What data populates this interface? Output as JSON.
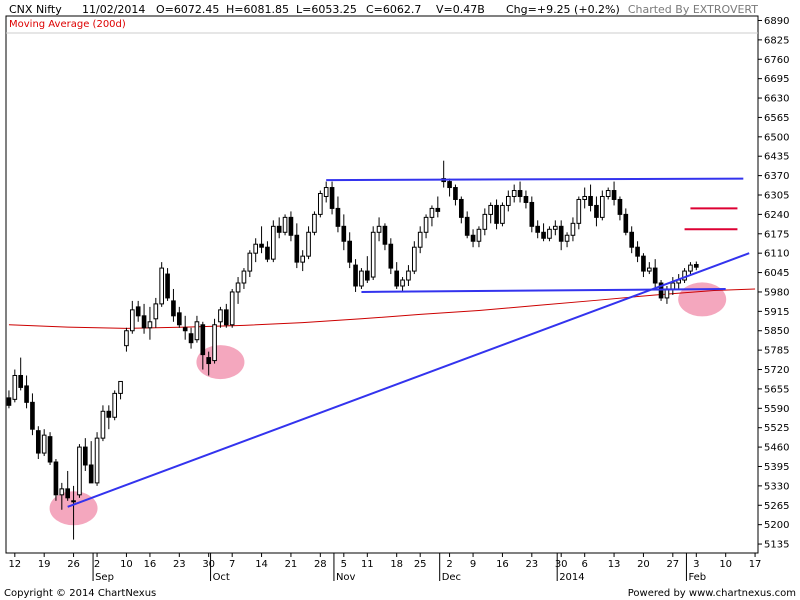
{
  "header": {
    "symbol": "CNX Nifty",
    "date": "11/02/2014",
    "open": "O=6072.45",
    "high": "H=6081.85",
    "low": "L=6053.25",
    "close": "C=6062.7",
    "volume": "V=0.47B",
    "change": "Chg=+9.25 (+0.2%)",
    "charted_by": "Charted By EXTROVERT"
  },
  "legend": {
    "moving_average": "Moving Average (200d)"
  },
  "footer": {
    "copyright": "Copyright © 2014 ChartNexus",
    "powered_by": "Powered by www.chartnexus.com"
  },
  "colors": {
    "candle": "#000000",
    "moving_average": "#cc0000",
    "trendline": "#3333ee",
    "resistance_mark": "#dd0033",
    "highlight": "#f08aa8"
  },
  "chart_data": {
    "type": "candlestick",
    "title": "",
    "xlabel": "",
    "ylabel": "",
    "ylim": [
      5105,
      6905
    ],
    "y_ticks": [
      5135,
      5200,
      5265,
      5330,
      5395,
      5460,
      5525,
      5590,
      5655,
      5720,
      5785,
      5850,
      5915,
      5980,
      6045,
      6110,
      6175,
      6240,
      6305,
      6370,
      6435,
      6500,
      6565,
      6630,
      6695,
      6760,
      6825,
      6890
    ],
    "x_ticks": [
      {
        "label": "12",
        "i": 1
      },
      {
        "label": "19",
        "i": 6
      },
      {
        "label": "26",
        "i": 11
      },
      {
        "label": "2",
        "i": 15
      },
      {
        "label": "10",
        "i": 20
      },
      {
        "label": "16",
        "i": 24
      },
      {
        "label": "23",
        "i": 29
      },
      {
        "label": "30",
        "i": 34
      },
      {
        "label": "7",
        "i": 38
      },
      {
        "label": "14",
        "i": 43
      },
      {
        "label": "21",
        "i": 48
      },
      {
        "label": "28",
        "i": 53
      },
      {
        "label": "5",
        "i": 57
      },
      {
        "label": "11",
        "i": 61
      },
      {
        "label": "18",
        "i": 66
      },
      {
        "label": "25",
        "i": 70
      },
      {
        "label": "2",
        "i": 75
      },
      {
        "label": "9",
        "i": 79
      },
      {
        "label": "16",
        "i": 84
      },
      {
        "label": "23",
        "i": 89
      },
      {
        "label": "30",
        "i": 94
      },
      {
        "label": "6",
        "i": 98
      },
      {
        "label": "13",
        "i": 103
      },
      {
        "label": "20",
        "i": 108
      },
      {
        "label": "27",
        "i": 113
      },
      {
        "label": "3",
        "i": 117
      },
      {
        "label": "10",
        "i": 122
      },
      {
        "label": "17",
        "i": 127
      }
    ],
    "month_labels": [
      {
        "label": "Sep",
        "i": 15
      },
      {
        "label": "Oct",
        "i": 35
      },
      {
        "label": "Nov",
        "i": 56
      },
      {
        "label": "Dec",
        "i": 74
      },
      {
        "label": "2014",
        "i": 94
      },
      {
        "label": "Feb",
        "i": 116
      }
    ],
    "candles": [
      [
        5625,
        5650,
        5590,
        5600
      ],
      [
        5620,
        5720,
        5610,
        5700
      ],
      [
        5700,
        5760,
        5650,
        5660
      ],
      [
        5665,
        5700,
        5590,
        5610
      ],
      [
        5610,
        5640,
        5500,
        5520
      ],
      [
        5515,
        5530,
        5420,
        5440
      ],
      [
        5440,
        5520,
        5430,
        5500
      ],
      [
        5495,
        5510,
        5400,
        5410
      ],
      [
        5410,
        5420,
        5280,
        5300
      ],
      [
        5300,
        5340,
        5250,
        5320
      ],
      [
        5320,
        5380,
        5280,
        5290
      ],
      [
        5280,
        5330,
        5150,
        5280
      ],
      [
        5300,
        5470,
        5290,
        5460
      ],
      [
        5460,
        5490,
        5380,
        5400
      ],
      [
        5400,
        5480,
        5340,
        5340
      ],
      [
        5340,
        5510,
        5330,
        5490
      ],
      [
        5490,
        5600,
        5480,
        5580
      ],
      [
        5580,
        5600,
        5520,
        5560
      ],
      [
        5560,
        5650,
        5550,
        5640
      ],
      [
        5640,
        5680,
        5620,
        5680
      ],
      [
        5800,
        5860,
        5780,
        5850
      ],
      [
        5850,
        5950,
        5840,
        5920
      ],
      [
        5930,
        5950,
        5880,
        5900
      ],
      [
        5900,
        5940,
        5840,
        5860
      ],
      [
        5860,
        5930,
        5820,
        5880
      ],
      [
        5890,
        5960,
        5860,
        5940
      ],
      [
        5940,
        6080,
        5930,
        6060
      ],
      [
        6040,
        6060,
        5950,
        5960
      ],
      [
        5950,
        5990,
        5880,
        5900
      ],
      [
        5910,
        5930,
        5860,
        5870
      ],
      [
        5860,
        5900,
        5820,
        5850
      ],
      [
        5840,
        5860,
        5790,
        5810
      ],
      [
        5820,
        5900,
        5810,
        5880
      ],
      [
        5870,
        5880,
        5720,
        5770
      ],
      [
        5760,
        5780,
        5700,
        5740
      ],
      [
        5750,
        5890,
        5740,
        5870
      ],
      [
        5880,
        5930,
        5860,
        5920
      ],
      [
        5920,
        5940,
        5860,
        5870
      ],
      [
        5870,
        5990,
        5860,
        5980
      ],
      [
        5980,
        6030,
        5940,
        6010
      ],
      [
        6010,
        6060,
        5990,
        6050
      ],
      [
        6050,
        6120,
        6030,
        6110
      ],
      [
        6110,
        6160,
        6080,
        6140
      ],
      [
        6140,
        6200,
        6110,
        6130
      ],
      [
        6130,
        6150,
        6080,
        6090
      ],
      [
        6090,
        6220,
        6080,
        6200
      ],
      [
        6200,
        6230,
        6160,
        6180
      ],
      [
        6180,
        6240,
        6170,
        6230
      ],
      [
        6230,
        6250,
        6150,
        6170
      ],
      [
        6170,
        6210,
        6060,
        6080
      ],
      [
        6080,
        6120,
        6050,
        6100
      ],
      [
        6100,
        6200,
        6090,
        6180
      ],
      [
        6180,
        6250,
        6170,
        6240
      ],
      [
        6240,
        6320,
        6230,
        6310
      ],
      [
        6300,
        6350,
        6280,
        6330
      ],
      [
        6330,
        6350,
        6240,
        6260
      ],
      [
        6260,
        6300,
        6180,
        6200
      ],
      [
        6200,
        6240,
        6120,
        6150
      ],
      [
        6150,
        6180,
        6060,
        6080
      ],
      [
        6070,
        6090,
        5980,
        6000
      ],
      [
        6000,
        6060,
        5990,
        6050
      ],
      [
        6050,
        6100,
        6010,
        6020
      ],
      [
        6030,
        6200,
        6020,
        6180
      ],
      [
        6180,
        6230,
        6150,
        6200
      ],
      [
        6200,
        6210,
        6120,
        6140
      ],
      [
        6140,
        6160,
        6040,
        6060
      ],
      [
        6050,
        6080,
        5990,
        6000
      ],
      [
        6000,
        6030,
        5980,
        6020
      ],
      [
        6020,
        6070,
        6000,
        6050
      ],
      [
        6050,
        6150,
        6040,
        6130
      ],
      [
        6130,
        6200,
        6110,
        6180
      ],
      [
        6180,
        6240,
        6160,
        6230
      ],
      [
        6230,
        6270,
        6200,
        6260
      ],
      [
        6260,
        6300,
        6230,
        6250
      ],
      [
        6360,
        6420,
        6330,
        6350
      ],
      [
        6350,
        6360,
        6300,
        6330
      ],
      [
        6330,
        6340,
        6270,
        6290
      ],
      [
        6290,
        6300,
        6210,
        6230
      ],
      [
        6230,
        6250,
        6160,
        6170
      ],
      [
        6170,
        6190,
        6130,
        6150
      ],
      [
        6150,
        6200,
        6130,
        6190
      ],
      [
        6190,
        6260,
        6170,
        6240
      ],
      [
        6240,
        6280,
        6210,
        6270
      ],
      [
        6270,
        6290,
        6190,
        6210
      ],
      [
        6210,
        6280,
        6200,
        6270
      ],
      [
        6270,
        6320,
        6250,
        6300
      ],
      [
        6300,
        6340,
        6280,
        6320
      ],
      [
        6320,
        6350,
        6280,
        6300
      ],
      [
        6300,
        6320,
        6260,
        6280
      ],
      [
        6280,
        6300,
        6180,
        6200
      ],
      [
        6200,
        6220,
        6160,
        6180
      ],
      [
        6180,
        6210,
        6150,
        6160
      ],
      [
        6160,
        6200,
        6150,
        6190
      ],
      [
        6190,
        6220,
        6170,
        6200
      ],
      [
        6200,
        6220,
        6120,
        6150
      ],
      [
        6150,
        6180,
        6130,
        6170
      ],
      [
        6170,
        6230,
        6150,
        6210
      ],
      [
        6210,
        6300,
        6190,
        6290
      ],
      [
        6290,
        6330,
        6260,
        6300
      ],
      [
        6300,
        6340,
        6250,
        6270
      ],
      [
        6270,
        6300,
        6200,
        6230
      ],
      [
        6230,
        6320,
        6220,
        6300
      ],
      [
        6300,
        6330,
        6290,
        6320
      ],
      [
        6320,
        6350,
        6270,
        6290
      ],
      [
        6290,
        6300,
        6220,
        6240
      ],
      [
        6240,
        6260,
        6170,
        6180
      ],
      [
        6180,
        6200,
        6110,
        6130
      ],
      [
        6130,
        6150,
        6080,
        6100
      ],
      [
        6100,
        6110,
        6030,
        6050
      ],
      [
        6050,
        6080,
        6040,
        6060
      ],
      [
        6060,
        6090,
        5990,
        6010
      ],
      [
        6010,
        6020,
        5950,
        5960
      ],
      [
        5960,
        6000,
        5940,
        5990
      ],
      [
        5990,
        6030,
        5970,
        6010
      ],
      [
        6010,
        6040,
        5990,
        6020
      ],
      [
        6020,
        6060,
        6010,
        6050
      ],
      [
        6050,
        6080,
        6040,
        6070
      ],
      [
        6072,
        6082,
        6053,
        6063
      ]
    ],
    "moving_average_200d": [
      [
        0,
        5870
      ],
      [
        10,
        5862
      ],
      [
        20,
        5858
      ],
      [
        30,
        5862
      ],
      [
        40,
        5868
      ],
      [
        50,
        5877
      ],
      [
        60,
        5890
      ],
      [
        70,
        5905
      ],
      [
        80,
        5918
      ],
      [
        90,
        5935
      ],
      [
        100,
        5952
      ],
      [
        110,
        5970
      ],
      [
        120,
        5985
      ],
      [
        127,
        5990
      ]
    ],
    "trendlines": [
      {
        "from": [
          10,
          5260
        ],
        "to": [
          126,
          6110
        ]
      },
      {
        "from": [
          54,
          6355
        ],
        "to": [
          125,
          6360
        ]
      },
      {
        "from": [
          60,
          5980
        ],
        "to": [
          122,
          5990
        ]
      }
    ],
    "resistance_marks": [
      {
        "from": [
          116,
          6260
        ],
        "to": [
          124,
          6260
        ]
      },
      {
        "from": [
          115,
          6190
        ],
        "to": [
          124,
          6190
        ]
      }
    ],
    "highlights": [
      {
        "i": 11,
        "y": 5255
      },
      {
        "i": 36,
        "y": 5745
      },
      {
        "i": 118,
        "y": 5955
      }
    ]
  }
}
